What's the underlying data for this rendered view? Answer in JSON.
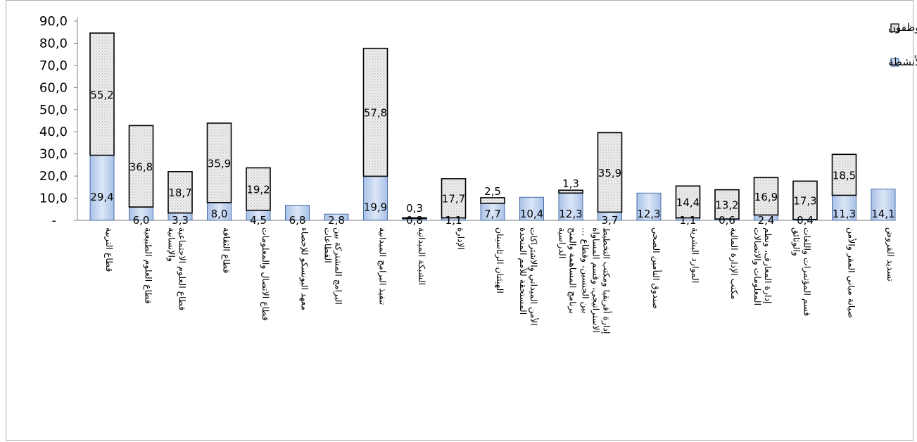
{
  "chart_data": {
    "type": "bar",
    "stacked": true,
    "categories": [
      "قطاع التربية",
      "قطاع العلوم الطبيعية",
      "قطاع العلوم الاجتماعية والإنسانية",
      "قطاع الثقافة",
      "قطاع الاتصال والمعلومات",
      "معهد اليونسكو للإحصاء",
      "البرامج المشتركة بين القطاعات",
      "تنفيذ البرامج الميدانية",
      "الشبكة الميدانية",
      "الإدارة",
      "الهيئتان الرئاسيتان",
      "الأمن الميداني والاشتراكات المستحقة للأمم المتحدة",
      "برنامج المساهمة والمنح الدراسية",
      "إدارة أفريقيا ومكتب التخطيط الاستراتيجي، وقسم المساواة بين الجنسين، وقطاع …",
      "صندوق التأمين الصحي",
      "الموارد البشرية",
      "مكتب الإدارة المالية",
      "إدارة المعارف، ونظم المعلومات والاتصالات",
      "قسم المؤتمرات واللغات والوثائق",
      "صيانة مباني المقر والأمن",
      "تسديد القروض"
    ],
    "series": [
      {
        "name": "الأنشطة",
        "color": "#c5d5ee",
        "values": [
          29.4,
          6.0,
          3.3,
          8.0,
          4.5,
          6.8,
          2.8,
          19.9,
          0.8,
          1.1,
          7.7,
          10.4,
          12.3,
          3.7,
          12.3,
          1.1,
          0.6,
          2.4,
          0.4,
          11.3,
          14.1
        ],
        "labels": [
          "29,4",
          "6,0",
          "3,3",
          "8,0",
          "4,5",
          "6,8",
          "2,8",
          "19,9",
          "0,8",
          "1,1",
          "7,7",
          "10,4",
          "12,3",
          "3,7",
          "12,3",
          "1,1",
          "0,6",
          "2,4",
          "0,4",
          "11,3",
          "14,1"
        ]
      },
      {
        "name": "الموظفون",
        "color": "#e4e4e4",
        "values": [
          55.2,
          36.8,
          18.7,
          35.9,
          19.2,
          0,
          0,
          57.8,
          0.3,
          17.7,
          2.5,
          0,
          1.3,
          35.9,
          0,
          14.4,
          13.2,
          16.9,
          17.3,
          18.5,
          0
        ],
        "labels": [
          "55,2",
          "36,8",
          "18,7",
          "35,9",
          "19,2",
          "",
          "",
          "57,8",
          "0,3",
          "17,7",
          "2,5",
          "",
          "1,3",
          "35,9",
          "",
          "14,4",
          "13,2",
          "16,9",
          "17,3",
          "18,5",
          ""
        ]
      }
    ],
    "y_ticks": [
      "-",
      "10,0",
      "20,0",
      "30,0",
      "40,0",
      "50,0",
      "60,0",
      "70,0",
      "80,0",
      "90,0"
    ],
    "ylim": [
      0,
      90
    ],
    "legend_position": "top-right",
    "grid": false
  }
}
